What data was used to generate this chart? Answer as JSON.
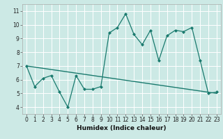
{
  "xlabel": "Humidex (Indice chaleur)",
  "bg_color": "#cce9e5",
  "grid_color": "#ffffff",
  "line_color": "#1a7a6e",
  "xlim": [
    -0.5,
    23.5
  ],
  "ylim": [
    3.5,
    11.5
  ],
  "xticks": [
    0,
    1,
    2,
    3,
    4,
    5,
    6,
    7,
    8,
    9,
    10,
    11,
    12,
    13,
    14,
    15,
    16,
    17,
    18,
    19,
    20,
    21,
    22,
    23
  ],
  "yticks": [
    4,
    5,
    6,
    7,
    8,
    9,
    10,
    11
  ],
  "series1_x": [
    0,
    1,
    2,
    3,
    4,
    5,
    6,
    7,
    8,
    9,
    10,
    11,
    12,
    13,
    14,
    15,
    16,
    17,
    18,
    19,
    20,
    21,
    22,
    23
  ],
  "series1_y": [
    7.0,
    5.5,
    6.1,
    6.3,
    5.1,
    4.0,
    6.3,
    5.3,
    5.3,
    5.5,
    9.4,
    9.8,
    10.8,
    9.3,
    8.55,
    9.6,
    7.4,
    9.2,
    9.6,
    9.5,
    9.8,
    7.4,
    5.0,
    5.1
  ],
  "regression_start_x": 0,
  "regression_start_y": 7.0,
  "regression_end_x": 23,
  "regression_end_y": 5.0,
  "tick_fontsize": 5.5,
  "xlabel_fontsize": 6.5
}
